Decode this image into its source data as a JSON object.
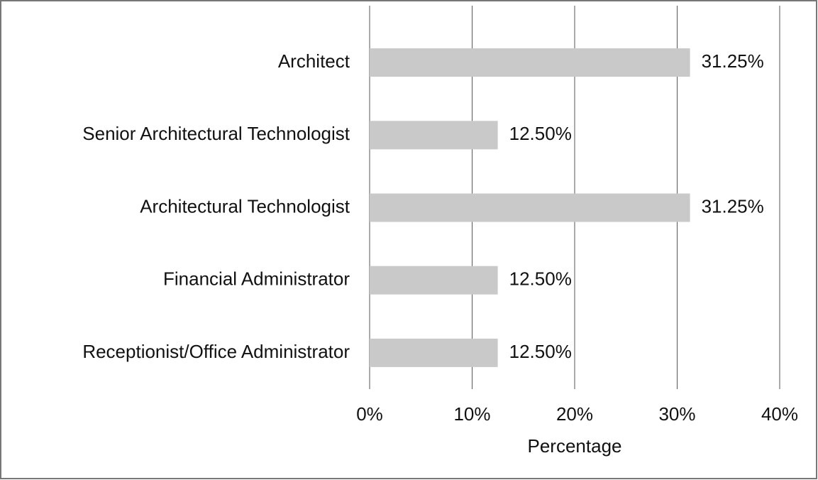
{
  "chart_data": {
    "type": "bar",
    "orientation": "horizontal",
    "categories": [
      "Architect",
      "Senior Architectural Technologist",
      "Architectural Technologist",
      "Financial Administrator",
      "Receptionist/Office Administrator"
    ],
    "values": [
      31.25,
      12.5,
      31.25,
      12.5,
      12.5
    ],
    "value_labels": [
      "31.25%",
      "12.50%",
      "31.25%",
      "12.50%",
      "12.50%"
    ],
    "color": "#c9c9c9",
    "xlabel": "Percentage",
    "xlim": [
      0,
      40
    ],
    "xticks": [
      {
        "value": 0,
        "label": "0%"
      },
      {
        "value": 10,
        "label": "10%"
      },
      {
        "value": 20,
        "label": "20%"
      },
      {
        "value": 30,
        "label": "30%"
      },
      {
        "value": 40,
        "label": "40%"
      }
    ],
    "grid": true
  }
}
